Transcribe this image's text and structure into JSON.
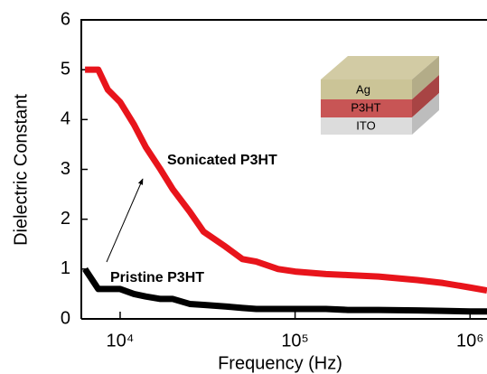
{
  "chart_data": {
    "type": "line",
    "x_label": "Frequency (Hz)",
    "y_label": "Dielectric Constant",
    "x": [
      6300,
      7500,
      8500,
      10000,
      12000,
      14000,
      17000,
      20000,
      25000,
      30000,
      40000,
      50000,
      60000,
      80000,
      100000,
      150000,
      200000,
      300000,
      500000,
      700000,
      1000000,
      1250000
    ],
    "series": [
      {
        "name": "Sonicated P3HT",
        "color": "#e8141b",
        "values": [
          5.0,
          5.0,
          4.6,
          4.35,
          3.9,
          3.45,
          3.0,
          2.6,
          2.15,
          1.75,
          1.45,
          1.2,
          1.15,
          1.0,
          0.95,
          0.9,
          0.88,
          0.85,
          0.78,
          0.72,
          0.63,
          0.57
        ]
      },
      {
        "name": "Pristine P3HT",
        "color": "#000000",
        "values": [
          1.0,
          0.6,
          0.6,
          0.6,
          0.5,
          0.45,
          0.4,
          0.4,
          0.3,
          0.28,
          0.25,
          0.22,
          0.2,
          0.2,
          0.2,
          0.2,
          0.18,
          0.18,
          0.17,
          0.16,
          0.15,
          0.15
        ]
      }
    ],
    "xscale": "log",
    "xlim": [
      6000,
      1250000
    ],
    "xticks": [
      {
        "value": 10000,
        "label": "10⁴"
      },
      {
        "value": 100000,
        "label": "10⁵"
      },
      {
        "value": 1000000,
        "label": "10⁶"
      }
    ],
    "ylim": [
      0,
      6
    ],
    "yticks": [
      0,
      1,
      2,
      3,
      4,
      5,
      6
    ],
    "inset_labels": [
      "Ag",
      "P3HT",
      "ITO"
    ]
  }
}
